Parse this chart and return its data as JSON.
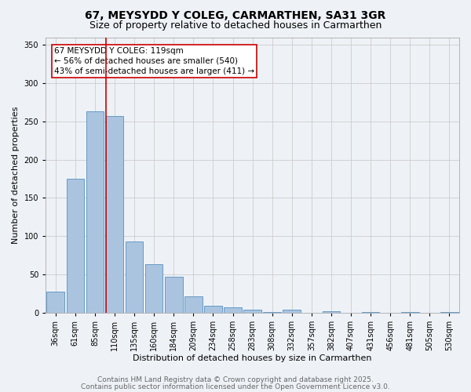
{
  "title1": "67, MEYSYDD Y COLEG, CARMARTHEN, SA31 3GR",
  "title2": "Size of property relative to detached houses in Carmarthen",
  "xlabel": "Distribution of detached houses by size in Carmarthen",
  "ylabel": "Number of detached properties",
  "categories": [
    "36sqm",
    "61sqm",
    "85sqm",
    "110sqm",
    "135sqm",
    "160sqm",
    "184sqm",
    "209sqm",
    "234sqm",
    "258sqm",
    "283sqm",
    "308sqm",
    "332sqm",
    "357sqm",
    "382sqm",
    "407sqm",
    "431sqm",
    "456sqm",
    "481sqm",
    "505sqm",
    "530sqm"
  ],
  "values": [
    27,
    175,
    263,
    257,
    93,
    63,
    47,
    21,
    9,
    7,
    4,
    1,
    4,
    0,
    2,
    0,
    1,
    0,
    1,
    0,
    1
  ],
  "bar_color": "#aac4e0",
  "bar_edge_color": "#5590bf",
  "background_color": "#eef2f7",
  "vline_color": "#cc0000",
  "vline_x_index": 3,
  "annotation_text_line1": "67 MEYSYDD Y COLEG: 119sqm",
  "annotation_text_line2": "← 56% of detached houses are smaller (540)",
  "annotation_text_line3": "43% of semi-detached houses are larger (411) →",
  "footer1": "Contains HM Land Registry data © Crown copyright and database right 2025.",
  "footer2": "Contains public sector information licensed under the Open Government Licence v3.0.",
  "ylim": [
    0,
    360
  ],
  "yticks": [
    0,
    50,
    100,
    150,
    200,
    250,
    300,
    350
  ],
  "title_fontsize": 10,
  "subtitle_fontsize": 9,
  "axis_label_fontsize": 8,
  "tick_fontsize": 7,
  "annotation_fontsize": 7.5,
  "footer_fontsize": 6.5
}
